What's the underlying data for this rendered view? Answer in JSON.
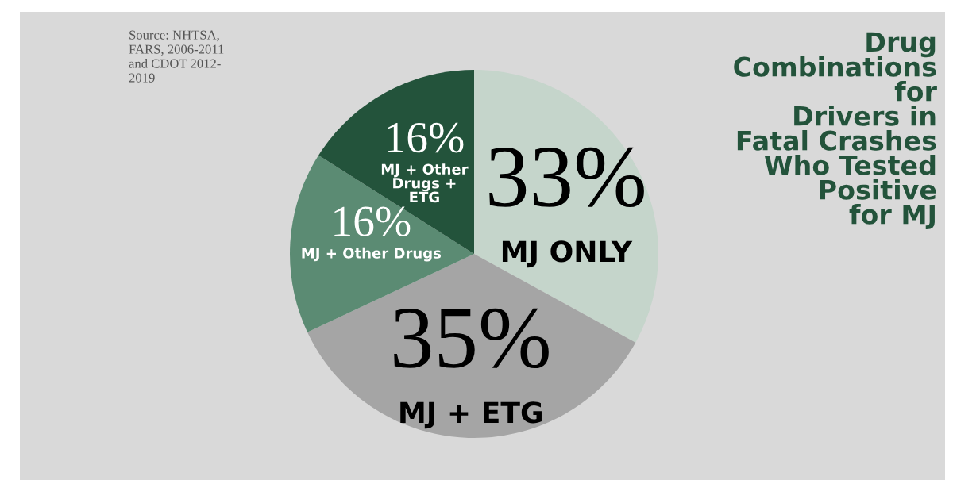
{
  "chart_data": {
    "type": "pie",
    "title": "Drug\nCombinations\nfor\nDrivers in\nFatal Crashes\nWho Tested\nPositive\nfor MJ",
    "annotations": [
      "Source: NHTSA,\nFARS, 2006-2011\nand CDOT 2012-\n2019"
    ],
    "categories": [
      "MJ ONLY",
      "MJ + ETG",
      "MJ + Other Drugs",
      "MJ + Other\nDrugs +\nETG"
    ],
    "values": [
      33,
      35,
      16,
      16
    ],
    "colors": [
      "#c5d5cb",
      "#a5a5a5",
      "#5b8b73",
      "#23533b"
    ],
    "value_labels": [
      "33%",
      "35%",
      "16%",
      "16%"
    ],
    "legend": false
  }
}
